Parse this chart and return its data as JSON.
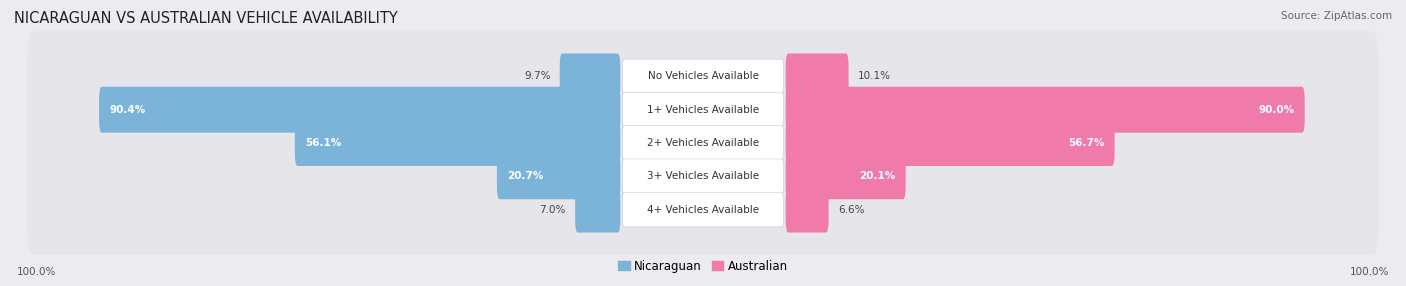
{
  "title": "NICARAGUAN VS AUSTRALIAN VEHICLE AVAILABILITY",
  "source_text": "Source: ZipAtlas.com",
  "categories": [
    "No Vehicles Available",
    "1+ Vehicles Available",
    "2+ Vehicles Available",
    "3+ Vehicles Available",
    "4+ Vehicles Available"
  ],
  "nicaraguan_values": [
    9.7,
    90.4,
    56.1,
    20.7,
    7.0
  ],
  "australian_values": [
    10.1,
    90.0,
    56.7,
    20.1,
    6.6
  ],
  "max_value": 100.0,
  "blue_color": "#7bb3d9",
  "pink_color": "#f07aaa",
  "pink_light": "#f5afc8",
  "blue_light": "#a8cce0",
  "bg_row_color": "#e6e6ea",
  "label_bg_color": "#ffffff",
  "title_fontsize": 10.5,
  "source_fontsize": 7.5,
  "value_fontsize": 7.5,
  "category_fontsize": 7.5,
  "legend_fontsize": 8.5,
  "axis_label_fontsize": 7.5,
  "figure_bg": "#ececf0"
}
